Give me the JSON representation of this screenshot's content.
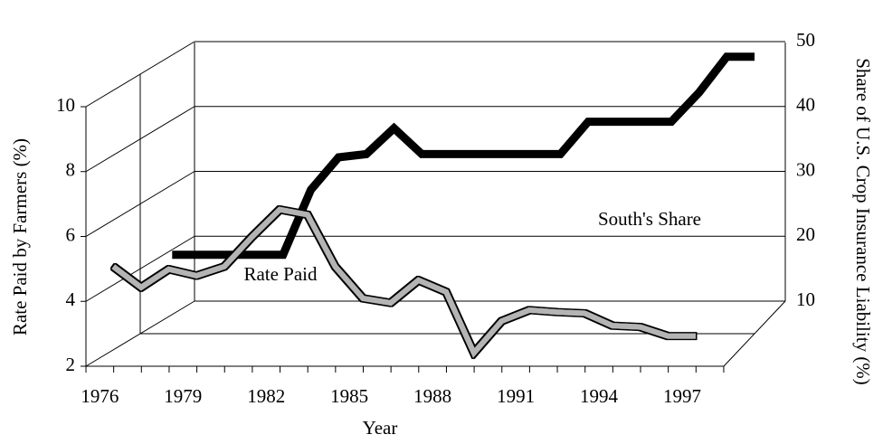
{
  "chart_data": {
    "type": "line",
    "x_label": "Year",
    "y_label": "Rate Paid by Farmers (%)",
    "y2_label": "Share of U.S. Crop Insurance Liability (%)",
    "categories": [
      "1976",
      null,
      null,
      "1979",
      null,
      null,
      "1982",
      null,
      null,
      "1985",
      null,
      null,
      "1988",
      null,
      null,
      "1991",
      null,
      null,
      "1994",
      null,
      null,
      "1997"
    ],
    "ylim": [
      2,
      10
    ],
    "yticks": [
      2,
      4,
      6,
      8,
      10
    ],
    "y2lim": [
      10,
      50
    ],
    "y2ticks": [
      10,
      20,
      30,
      40,
      50
    ],
    "series": [
      {
        "name": "Rate Paid",
        "color": "#000000",
        "axis": "y",
        "values": [
          4.1,
          4.1,
          4.1,
          4.1,
          4.1,
          6.1,
          7.1,
          7.2,
          8.0,
          7.2,
          7.2,
          7.2,
          7.2,
          7.2,
          7.2,
          8.2,
          8.2,
          8.2,
          8.2,
          9.1,
          10.2,
          10.2
        ]
      },
      {
        "name": "South's Share",
        "color": "#b4b4b4",
        "axis": "y2",
        "values": [
          24.1,
          20.9,
          23.7,
          22.7,
          24.1,
          28.7,
          32.9,
          32.1,
          24.1,
          19.2,
          18.5,
          22.0,
          20.2,
          10.8,
          15.7,
          17.4,
          17.1,
          16.9,
          15.0,
          14.8,
          13.4,
          13.4
        ]
      }
    ]
  }
}
